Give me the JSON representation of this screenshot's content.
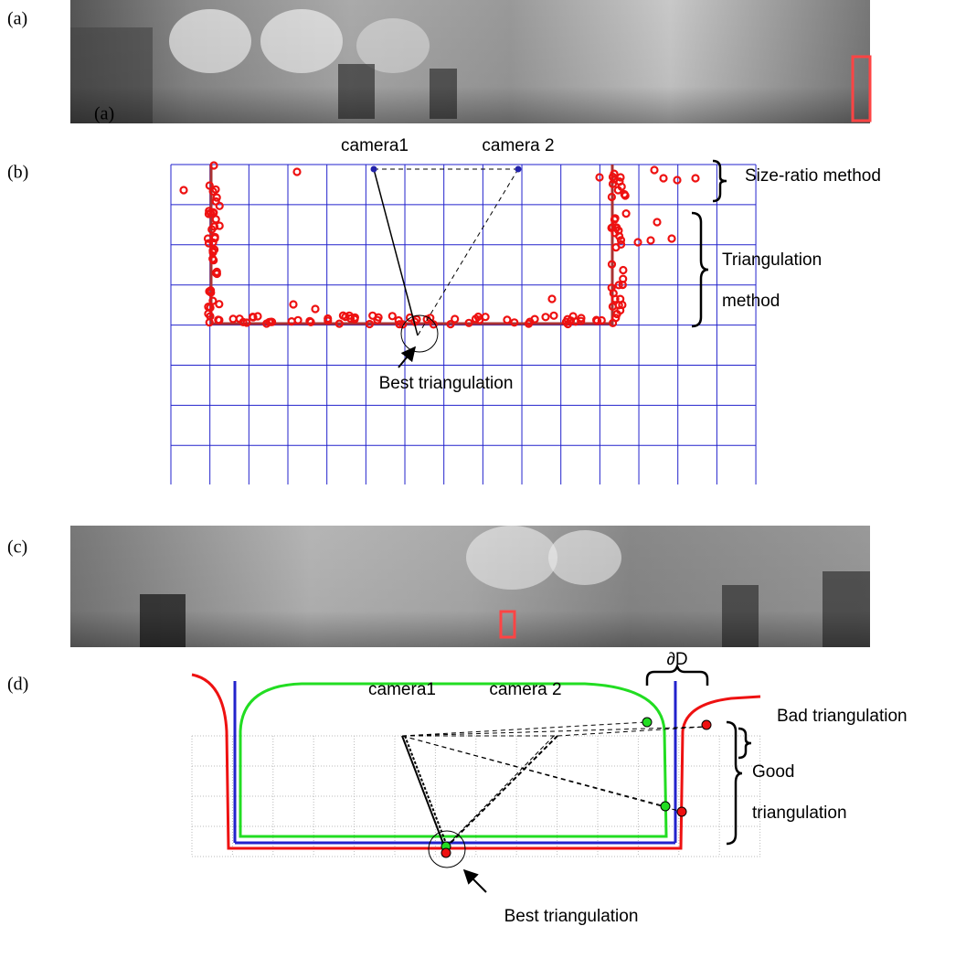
{
  "figure": {
    "a": {
      "label": "(a)",
      "inset_label": "(a)"
    },
    "b": {
      "label": "(b)",
      "camera1": "camera1",
      "camera2": "camera 2",
      "size_ratio": "Size-ratio method",
      "triangulation": [
        "Triangulation",
        "method"
      ],
      "best": "Best triangulation"
    },
    "c": {
      "label": "(c)"
    },
    "d": {
      "label": "(d)",
      "camera1": "camera1",
      "camera2": "camera 2",
      "delta": "∂D",
      "bad": "Bad triangulation",
      "good": [
        "Good",
        "triangulation"
      ],
      "best": "Best triangulation"
    }
  }
}
